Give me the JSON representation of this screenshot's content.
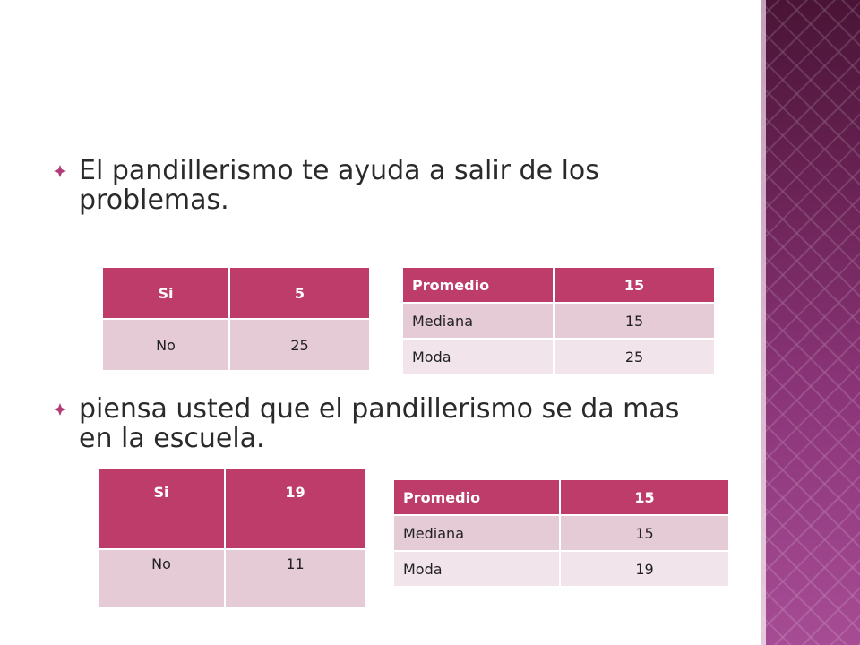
{
  "bullets": [
    {
      "text": "El pandillerismo te ayuda a salir de los problemas."
    },
    {
      "text": " piensa usted que el pandillerismo se da mas en la escuela."
    }
  ],
  "tables": {
    "t1": {
      "rows": [
        [
          "Si",
          "5"
        ],
        [
          "No",
          "25"
        ]
      ]
    },
    "t2": {
      "rows": [
        [
          "Promedio",
          "15"
        ],
        [
          "Mediana",
          "15"
        ],
        [
          "Moda",
          "25"
        ]
      ]
    },
    "t3": {
      "rows": [
        [
          "Si",
          "19"
        ],
        [
          "No",
          "11"
        ]
      ]
    },
    "t4": {
      "rows": [
        [
          "Promedio",
          "15"
        ],
        [
          "Mediana",
          "15"
        ],
        [
          "Moda",
          "19"
        ]
      ]
    }
  },
  "colors": {
    "header": "#bd3c69",
    "row_dark": "#e5cbd6",
    "row_light": "#f1e5eb",
    "bullet": "#b23a77"
  }
}
